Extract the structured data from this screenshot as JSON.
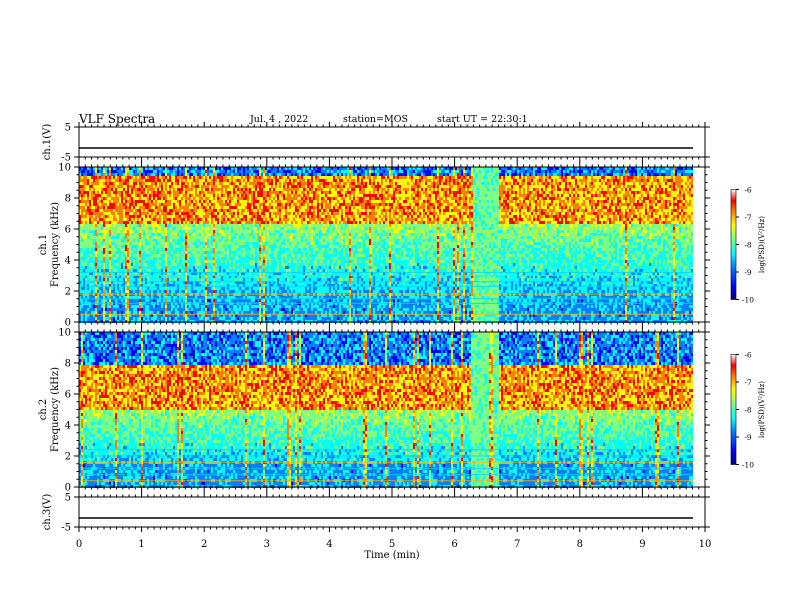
{
  "header": {
    "title": "VLF Spectra",
    "date": "Jul. 4 , 2022",
    "station": "station=MOS",
    "start": "start UT = 22:30:1"
  },
  "colors": {
    "colormap": [
      "#00007f",
      "#0000ff",
      "#0080ff",
      "#00ffff",
      "#80ff80",
      "#ffff00",
      "#ff8000",
      "#ff0000",
      "#ffffff"
    ],
    "trace": "#000000"
  },
  "chart_data": [
    {
      "type": "line",
      "panel": "ch1-voltage",
      "ylabel": "ch.1(V)",
      "ylim": [
        -5,
        5
      ],
      "yticks": [
        "5",
        "-5"
      ],
      "xlim": [
        0,
        10
      ],
      "series": [
        {
          "values_summary": "near-constant trace at about -2 V across 0–10 min"
        }
      ]
    },
    {
      "type": "heatmap",
      "panel": "ch1-spectrogram",
      "ylabel": "ch.1 Frequency (kHz)",
      "ylim": [
        0,
        10
      ],
      "yticks": [
        "0",
        "2",
        "4",
        "6",
        "8",
        "10"
      ],
      "xlim": [
        0,
        10
      ],
      "colorbar": {
        "label": "log(PSD)(V²/Hz)",
        "range": [
          -10,
          -6
        ],
        "ticks": [
          "-6",
          "-7",
          "-8",
          "-9",
          "-10"
        ]
      },
      "features": {
        "bright_band_khz": [
          6.5,
          9.5
        ],
        "horizontal_lines_khz": [
          0.5,
          1.2,
          1.5,
          1.8,
          2.3,
          2.6,
          3.0,
          3.2
        ],
        "anomaly_minutes": [
          6.25,
          6.7
        ]
      }
    },
    {
      "type": "heatmap",
      "panel": "ch2-spectrogram",
      "ylabel": "ch.2 Frequency (kHz)",
      "ylim": [
        0,
        10
      ],
      "yticks": [
        "0",
        "2",
        "4",
        "6",
        "8",
        "10"
      ],
      "xlim": [
        0,
        10
      ],
      "colorbar": {
        "label": "log(PSD)(V²/Hz)",
        "range": [
          -10,
          -6
        ],
        "ticks": [
          "-6",
          "-7",
          "-8",
          "-9",
          "-10"
        ]
      },
      "features": {
        "bright_band_khz": [
          5.0,
          8.0
        ],
        "horizontal_lines_khz": [
          0.4,
          0.8,
          1.2,
          1.6,
          2.0,
          2.4
        ],
        "anomaly_minutes": [
          6.25,
          6.7
        ]
      }
    },
    {
      "type": "line",
      "panel": "ch3-voltage",
      "ylabel": "ch.3(V)",
      "ylim": [
        -5,
        5
      ],
      "yticks": [
        "5",
        "-5"
      ],
      "xlim": [
        0,
        10
      ],
      "xlabel": "Time (min)",
      "xticks": [
        "0",
        "1",
        "2",
        "3",
        "4",
        "5",
        "6",
        "7",
        "8",
        "9",
        "10"
      ],
      "series": [
        {
          "values_summary": "near-constant trace at about -2 V across 0–10 min"
        }
      ]
    }
  ]
}
